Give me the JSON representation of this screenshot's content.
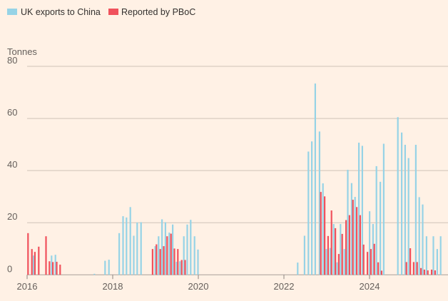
{
  "chart_data": {
    "type": "bar",
    "ylabel": "Tonnes",
    "ylim": [
      0,
      80
    ],
    "yticks": [
      0,
      20,
      40,
      60,
      80
    ],
    "xlim": [
      2016,
      2025.83
    ],
    "xticks": [
      2016,
      2018,
      2020,
      2022,
      2024
    ],
    "xtick_labels": [
      "2016",
      "2018",
      "2020",
      "2022",
      "2024"
    ],
    "grid": true,
    "legend_position": "top-left",
    "series": [
      {
        "name": "UK exports to China",
        "color": "#96d3e6",
        "points": [
          [
            2016.15,
            7.4
          ],
          [
            2016.57,
            7.4
          ],
          [
            2016.66,
            7.7
          ],
          [
            2017.57,
            0.4
          ],
          [
            2017.82,
            5.4
          ],
          [
            2017.91,
            5.8
          ],
          [
            2018.15,
            16
          ],
          [
            2018.24,
            22.5
          ],
          [
            2018.32,
            22
          ],
          [
            2018.41,
            26
          ],
          [
            2018.49,
            15
          ],
          [
            2018.57,
            20.1
          ],
          [
            2018.66,
            20.2
          ],
          [
            2018.99,
            11
          ],
          [
            2019.07,
            14.8
          ],
          [
            2019.15,
            21.3
          ],
          [
            2019.23,
            20.2
          ],
          [
            2019.32,
            16.2
          ],
          [
            2019.4,
            19.3
          ],
          [
            2019.49,
            5
          ],
          [
            2019.57,
            5.2
          ],
          [
            2019.66,
            14.8
          ],
          [
            2019.74,
            19.3
          ],
          [
            2019.82,
            21.1
          ],
          [
            2019.91,
            14.8
          ],
          [
            2019.99,
            9.7
          ],
          [
            2022.32,
            4.7
          ],
          [
            2022.48,
            15
          ],
          [
            2022.57,
            47.3
          ],
          [
            2022.65,
            51.2
          ],
          [
            2022.73,
            73.4
          ],
          [
            2022.83,
            55
          ],
          [
            2022.91,
            35.1
          ],
          [
            2022.99,
            9.9
          ],
          [
            2023.08,
            10.3
          ],
          [
            2023.16,
            19.5
          ],
          [
            2023.24,
            4.8
          ],
          [
            2023.32,
            19.5
          ],
          [
            2023.41,
            9.9
          ],
          [
            2023.49,
            40.3
          ],
          [
            2023.58,
            35.2
          ],
          [
            2023.66,
            29.9
          ],
          [
            2023.75,
            50.7
          ],
          [
            2023.83,
            49.5
          ],
          [
            2024.0,
            24.4
          ],
          [
            2024.08,
            19.5
          ],
          [
            2024.16,
            41.7
          ],
          [
            2024.25,
            35.7
          ],
          [
            2024.33,
            50.3
          ],
          [
            2024.66,
            60.5
          ],
          [
            2024.75,
            54.6
          ],
          [
            2024.83,
            49.9
          ],
          [
            2024.91,
            44.8
          ],
          [
            2025.08,
            49.9
          ],
          [
            2025.16,
            29.8
          ],
          [
            2025.24,
            27
          ],
          [
            2025.33,
            14.8
          ],
          [
            2025.49,
            14.8
          ],
          [
            2025.58,
            9.9
          ],
          [
            2025.66,
            14.8
          ]
        ]
      },
      {
        "name": "Reported by PBoC",
        "color": "#f0515c",
        "points": [
          [
            2016.02,
            16
          ],
          [
            2016.11,
            9.9
          ],
          [
            2016.18,
            8.8
          ],
          [
            2016.27,
            10.8
          ],
          [
            2016.44,
            14.8
          ],
          [
            2016.52,
            5.2
          ],
          [
            2016.6,
            4.9
          ],
          [
            2016.69,
            5
          ],
          [
            2016.77,
            3.9
          ],
          [
            2018.93,
            9.9
          ],
          [
            2019.02,
            11.7
          ],
          [
            2019.11,
            9.9
          ],
          [
            2019.19,
            11
          ],
          [
            2019.27,
            14.8
          ],
          [
            2019.36,
            15.8
          ],
          [
            2019.44,
            10.1
          ],
          [
            2019.52,
            9.9
          ],
          [
            2019.61,
            5.7
          ],
          [
            2019.69,
            5.7
          ],
          [
            2022.86,
            31.8
          ],
          [
            2022.95,
            30.1
          ],
          [
            2023.03,
            14.9
          ],
          [
            2023.11,
            24.7
          ],
          [
            2023.2,
            17.9
          ],
          [
            2023.28,
            8
          ],
          [
            2023.36,
            15.7
          ],
          [
            2023.45,
            21
          ],
          [
            2023.53,
            22.9
          ],
          [
            2023.61,
            28.8
          ],
          [
            2023.7,
            26
          ],
          [
            2023.78,
            22.9
          ],
          [
            2023.86,
            11.6
          ],
          [
            2023.95,
            8.8
          ],
          [
            2024.03,
            9.9
          ],
          [
            2024.11,
            11.9
          ],
          [
            2024.2,
            4.8
          ],
          [
            2024.28,
            1.6
          ],
          [
            2024.86,
            4.9
          ],
          [
            2024.95,
            10.2
          ],
          [
            2025.03,
            4.9
          ],
          [
            2025.11,
            4.9
          ],
          [
            2025.2,
            2.6
          ],
          [
            2025.28,
            2.0
          ],
          [
            2025.36,
            1.7
          ],
          [
            2025.45,
            2.0
          ],
          [
            2025.53,
            1.7
          ]
        ]
      }
    ]
  }
}
